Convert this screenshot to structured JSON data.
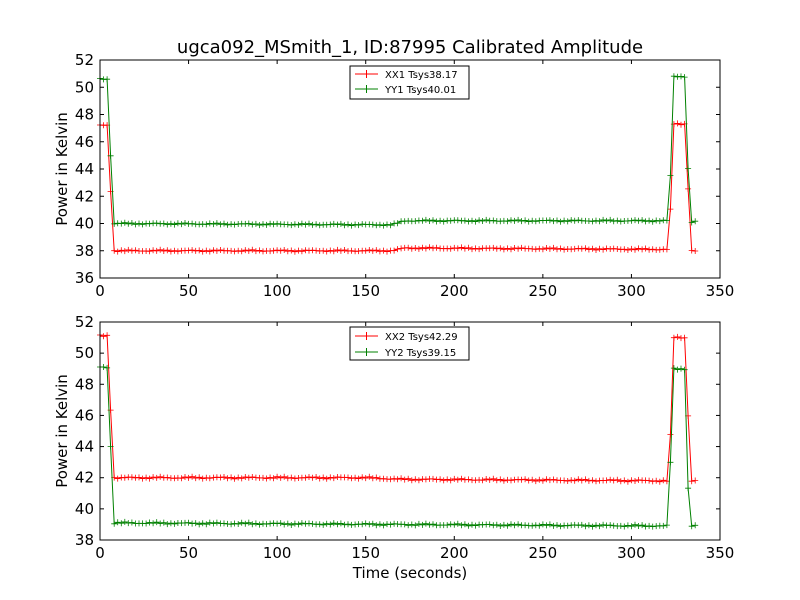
{
  "title": "ugca092_MSmith_1, ID:87995 Calibrated Amplitude",
  "colors": {
    "xx": "#ff0000",
    "yy": "#008000"
  },
  "chart_data": [
    {
      "type": "line",
      "xlabel": "",
      "ylabel": "Power in Kelvin",
      "xlim": [
        0,
        350
      ],
      "ylim": [
        36,
        52
      ],
      "xticks": [
        0,
        50,
        100,
        150,
        200,
        250,
        300,
        350
      ],
      "yticks": [
        36,
        38,
        40,
        42,
        44,
        46,
        48,
        50,
        52
      ],
      "legend_position": "top-center",
      "series": [
        {
          "name": "XX1 Tsys38.17",
          "color": "#ff0000",
          "levels": [
            [
              0,
              47.2
            ],
            [
              4,
              47.2
            ],
            [
              6,
              42.4
            ],
            [
              7,
              38.0
            ],
            [
              165,
              38.0
            ],
            [
              172,
              38.2
            ],
            [
              320,
              38.1
            ],
            [
              322,
              41.0
            ],
            [
              324,
              47.3
            ],
            [
              330,
              47.3
            ],
            [
              332,
              42.6
            ],
            [
              333,
              38.0
            ],
            [
              336,
              38.0
            ]
          ]
        },
        {
          "name": "YY1 Tsys40.01",
          "color": "#008000",
          "levels": [
            [
              0,
              50.6
            ],
            [
              4,
              50.6
            ],
            [
              6,
              45.0
            ],
            [
              7,
              40.0
            ],
            [
              165,
              39.9
            ],
            [
              172,
              40.2
            ],
            [
              320,
              40.2
            ],
            [
              322,
              43.5
            ],
            [
              324,
              50.8
            ],
            [
              330,
              50.8
            ],
            [
              332,
              44.0
            ],
            [
              333,
              40.1
            ],
            [
              336,
              40.1
            ]
          ]
        }
      ]
    },
    {
      "type": "line",
      "xlabel": "Time (seconds)",
      "ylabel": "Power in Kelvin",
      "xlim": [
        0,
        350
      ],
      "ylim": [
        38,
        52
      ],
      "xticks": [
        0,
        50,
        100,
        150,
        200,
        250,
        300,
        350
      ],
      "yticks": [
        38,
        40,
        42,
        44,
        46,
        48,
        50,
        52
      ],
      "legend_position": "top-center",
      "series": [
        {
          "name": "XX2 Tsys42.29",
          "color": "#ff0000",
          "levels": [
            [
              0,
              51.1
            ],
            [
              4,
              51.1
            ],
            [
              6,
              46.4
            ],
            [
              7,
              42.0
            ],
            [
              150,
              42.0
            ],
            [
              170,
              41.9
            ],
            [
              320,
              41.8
            ],
            [
              322,
              44.7
            ],
            [
              324,
              51.0
            ],
            [
              330,
              51.0
            ],
            [
              332,
              46.0
            ],
            [
              333,
              41.8
            ],
            [
              336,
              41.8
            ]
          ]
        },
        {
          "name": "YY2 Tsys39.15",
          "color": "#008000",
          "levels": [
            [
              0,
              49.1
            ],
            [
              4,
              49.1
            ],
            [
              6,
              44.0
            ],
            [
              7,
              39.1
            ],
            [
              165,
              39.0
            ],
            [
              320,
              38.9
            ],
            [
              322,
              43.0
            ],
            [
              324,
              49.0
            ],
            [
              330,
              49.0
            ],
            [
              332,
              41.3
            ],
            [
              333,
              38.9
            ],
            [
              336,
              38.9
            ]
          ]
        }
      ]
    }
  ]
}
